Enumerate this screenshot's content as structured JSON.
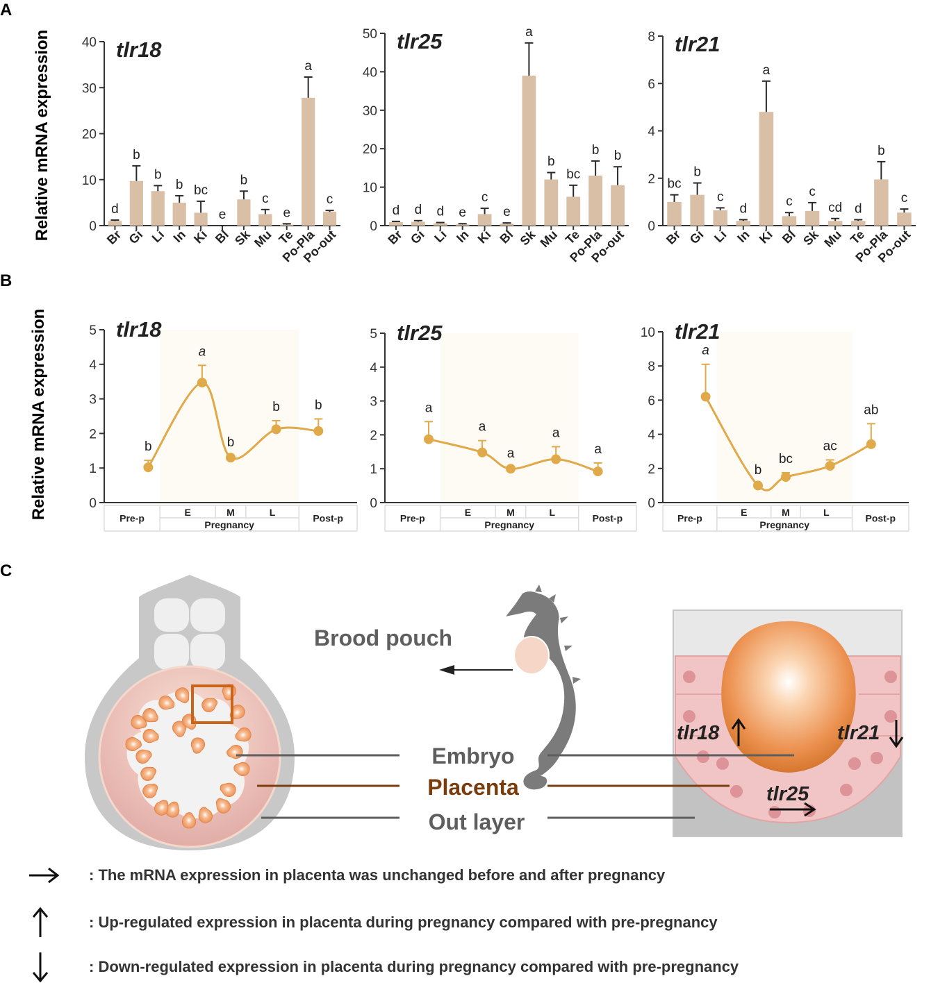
{
  "panel_labels": {
    "a": "A",
    "b": "B",
    "c": "C"
  },
  "ylabel": "Relative mRNA expression",
  "colors": {
    "bar": "#d9bfa6",
    "err": "#2a2a2a",
    "line": "#e0a949",
    "shade": "#fdfbf3",
    "axis": "#333333",
    "grey_text": "#5e5e5e",
    "placenta": "#7a3d0e"
  },
  "chart_data": [
    {
      "type": "bar",
      "title": "tlr18",
      "ylim": [
        0,
        40
      ],
      "yticks": [
        0,
        10,
        20,
        30,
        40
      ],
      "categories": [
        "Br",
        "Gi",
        "Li",
        "In",
        "Ki",
        "Bl",
        "Sk",
        "Mu",
        "Te",
        "Po-Pla",
        "Po-out"
      ],
      "values": [
        1,
        9.7,
        7.5,
        5,
        2.8,
        0,
        5.7,
        2.5,
        0.2,
        27.8,
        3
      ],
      "errors": [
        0.2,
        3.3,
        1.2,
        1.5,
        2.5,
        0,
        1.8,
        1,
        0.2,
        4.5,
        0.3
      ],
      "letters": [
        "d",
        "b",
        "b",
        "b",
        "bc",
        "e",
        "b",
        "c",
        "e",
        "a",
        "c"
      ]
    },
    {
      "type": "bar",
      "title": "tlr25",
      "ylim": [
        0,
        50
      ],
      "yticks": [
        0,
        10,
        20,
        30,
        40,
        50
      ],
      "categories": [
        "Br",
        "Gi",
        "Li",
        "In",
        "Ki",
        "Bl",
        "Sk",
        "Mu",
        "Te",
        "Po-Pla",
        "Po-out"
      ],
      "values": [
        0.9,
        1,
        0.6,
        0.3,
        3,
        0.5,
        39,
        12,
        7.5,
        13,
        10.5
      ],
      "errors": [
        0.2,
        0.3,
        0.2,
        0.2,
        1.5,
        0.2,
        8.5,
        1.8,
        3,
        3.8,
        4.8
      ],
      "letters": [
        "d",
        "d",
        "d",
        "e",
        "c",
        "e",
        "a",
        "b",
        "bc",
        "b",
        "b"
      ]
    },
    {
      "type": "bar",
      "title": "tlr21",
      "ylim": [
        0,
        8
      ],
      "yticks": [
        0,
        2,
        4,
        6,
        8
      ],
      "categories": [
        "Br",
        "Gi",
        "Li",
        "In",
        "Ki",
        "Bl",
        "Sk",
        "Mu",
        "Te",
        "Po-Pla",
        "Po-out"
      ],
      "values": [
        1,
        1.3,
        0.65,
        0.2,
        4.8,
        0.4,
        0.62,
        0.2,
        0.2,
        1.95,
        0.55
      ],
      "errors": [
        0.3,
        0.5,
        0.1,
        0.05,
        1.3,
        0.15,
        0.35,
        0.1,
        0.05,
        0.75,
        0.15
      ],
      "letters": [
        "bc",
        "b",
        "c",
        "d",
        "a",
        "c",
        "c",
        "cd",
        "d",
        "b",
        "c"
      ]
    },
    {
      "type": "line",
      "title": "tlr18",
      "ylim": [
        0,
        5
      ],
      "yticks": [
        0,
        1,
        2,
        3,
        4,
        5
      ],
      "x_stages": [
        "Pre-p",
        "E",
        "M",
        "L",
        "Post-p"
      ],
      "group_label": "Pregnancy",
      "values": [
        1.02,
        3.47,
        1.3,
        2.12,
        2.07
      ],
      "errors": [
        0.2,
        0.5,
        0.05,
        0.25,
        0.35
      ],
      "letters": [
        "b",
        "a",
        "b",
        "b",
        "b"
      ],
      "italic": [
        false,
        true,
        false,
        false,
        false
      ]
    },
    {
      "type": "line",
      "title": "tlr25",
      "ylim": [
        0,
        5
      ],
      "yticks": [
        0,
        1,
        2,
        3,
        4,
        5
      ],
      "x_stages": [
        "Pre-p",
        "E",
        "M",
        "L",
        "Post-p"
      ],
      "group_label": "Pregnancy",
      "values": [
        1.87,
        1.48,
        1,
        1.28,
        0.92
      ],
      "errors": [
        0.52,
        0.35,
        0.05,
        0.37,
        0.25
      ],
      "letters": [
        "a",
        "a",
        "a",
        "a",
        "a"
      ],
      "italic": [
        false,
        false,
        false,
        false,
        false
      ]
    },
    {
      "type": "line",
      "title": "tlr21",
      "ylim": [
        0,
        10
      ],
      "yticks": [
        0,
        2,
        4,
        6,
        8,
        10
      ],
      "x_stages": [
        "Pre-p",
        "E",
        "M",
        "L",
        "Post-p"
      ],
      "group_label": "Pregnancy",
      "values": [
        6.2,
        1,
        1.5,
        2.15,
        3.42
      ],
      "errors": [
        1.9,
        0.1,
        0.25,
        0.35,
        1.2
      ],
      "letters": [
        "a",
        "b",
        "bc",
        "ac",
        "ab"
      ],
      "italic": [
        true,
        false,
        false,
        false,
        false
      ]
    }
  ],
  "diagram": {
    "brood_pouch": "Brood pouch",
    "embryo": "Embryo",
    "placenta": "Placenta",
    "out_layer": "Out layer",
    "gene_up": "tlr18",
    "gene_down": "tlr21",
    "gene_same": "tlr25"
  },
  "legend": [
    {
      "icon": "arrow-right-icon",
      "text": ": The mRNA expression in placenta was unchanged before and after pregnancy"
    },
    {
      "icon": "arrow-up-icon",
      "text": ": Up-regulated expression  in placenta during pregnancy compared with pre-pregnancy"
    },
    {
      "icon": "arrow-down-icon",
      "text": ": Down-regulated expression  in placenta during pregnancy compared with pre-pregnancy"
    }
  ]
}
